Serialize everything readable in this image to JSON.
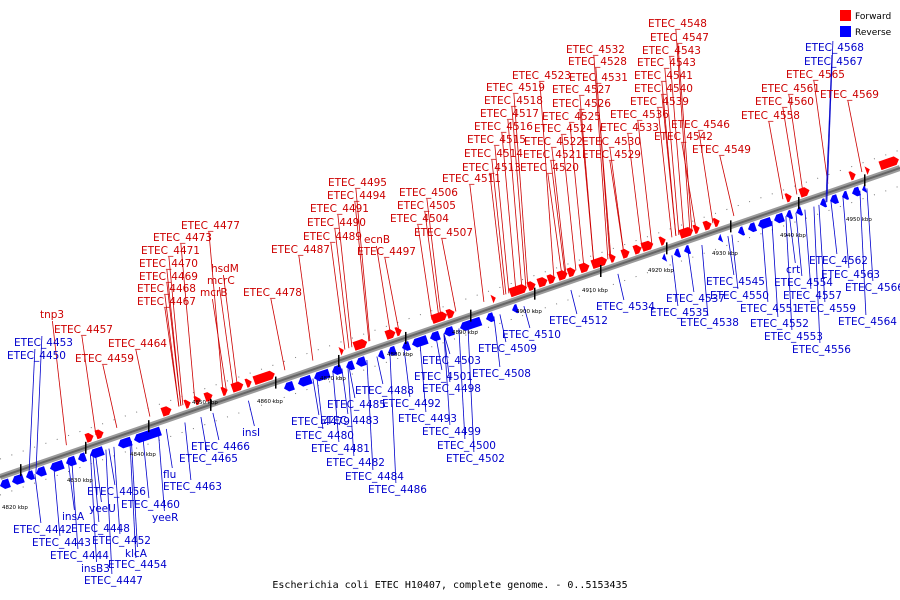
{
  "caption": "Escherichia coli ETEC H10407, complete genome. - 0..5153435",
  "legend": [
    {
      "label": "Forward",
      "color": "#ff0000"
    },
    {
      "label": "Reverse",
      "color": "#0000ff"
    }
  ],
  "ticks": [
    "4820 kbp",
    "4830 kbp",
    "4840 kbp",
    "4850 kbp",
    "4860 kbp",
    "4870 kbp",
    "4880 kbp",
    "4890 kbp",
    "4900 kbp",
    "4910 kbp",
    "4920 kbp",
    "4930 kbp",
    "4940 kbp",
    "4950 kbp"
  ],
  "forward_labels": [
    "tnp3",
    "ETEC_4457",
    "ETEC_4459",
    "ETEC_4464",
    "ETEC_4467",
    "ETEC_4468",
    "ETEC_4469",
    "ETEC_4470",
    "ETEC_4471",
    "ETEC_4473",
    "ETEC_4477",
    "hsdM",
    "mcrC",
    "mcrB",
    "ETEC_4478",
    "ETEC_4487",
    "ETEC_4489",
    "ETEC_4490",
    "ETEC_4491",
    "ETEC_4494",
    "ETEC_4495",
    "ecnB",
    "ETEC_4497",
    "ETEC_4504",
    "ETEC_4505",
    "ETEC_4506",
    "ETEC_4507",
    "ETEC_4511",
    "ETEC_4513",
    "ETEC_4514",
    "ETEC_4515",
    "ETEC_4516",
    "ETEC_4517",
    "ETEC_4518",
    "ETEC_4519",
    "ETEC_4523",
    "ETEC_4528",
    "ETEC_4532",
    "ETEC_4531",
    "ETEC_4527",
    "ETEC_4526",
    "ETEC_4525",
    "ETEC_4524",
    "ETEC_4522",
    "ETEC_4521",
    "ETEC_4520",
    "ETEC_4530",
    "ETEC_4529",
    "ETEC_4533",
    "ETEC_4536",
    "ETEC_4548",
    "ETEC_4547",
    "ETEC_4543",
    "ETEC_4543",
    "ETEC_4541",
    "ETEC_4540",
    "ETEC_4539",
    "ETEC_4546",
    "ETEC_4542",
    "ETEC_4549",
    "ETEC_4565",
    "ETEC_4561",
    "ETEC_4560",
    "ETEC_4558",
    "ETEC_4569"
  ],
  "reverse_labels": [
    "ETEC_4453",
    "ETEC_4450",
    "ETEC_4442",
    "ETEC_4443",
    "insA",
    "yeeU",
    "ETEC_4448",
    "ETEC_4444",
    "insB3",
    "ETEC_4447",
    "ETEC_4456",
    "ETEC_4452",
    "klcA",
    "ETEC_4454",
    "ETEC_4460",
    "yeeR",
    "flu",
    "ETEC_4463",
    "ETEC_4466",
    "ETEC_4465",
    "insI",
    "ETEC_4479",
    "ETEC_4480",
    "ETEC_4481",
    "ETEC_4482",
    "ETEC_4483",
    "ETEC_4484",
    "ETEC_4485",
    "ETEC_4486",
    "ETEC_4488",
    "ETEC_4492",
    "ETEC_4493",
    "ETEC_4498",
    "ETEC_4499",
    "ETEC_4500",
    "ETEC_4501",
    "ETEC_4502",
    "ETEC_4503",
    "ETEC_4508",
    "ETEC_4509",
    "ETEC_4510",
    "ETEC_4512",
    "ETEC_4534",
    "ETEC_4535",
    "ETEC_4537",
    "ETEC_4538",
    "ETEC_4545",
    "ETEC_4550",
    "ETEC_4551",
    "ETEC_4552",
    "ETEC_4553",
    "ETEC_4554",
    "crt",
    "ETEC_4556",
    "ETEC_4557",
    "ETEC_4559",
    "ETEC_4562",
    "ETEC_4563",
    "ETEC_4564",
    "ETEC_4566",
    "ETEC_4568",
    "ETEC_4567"
  ]
}
